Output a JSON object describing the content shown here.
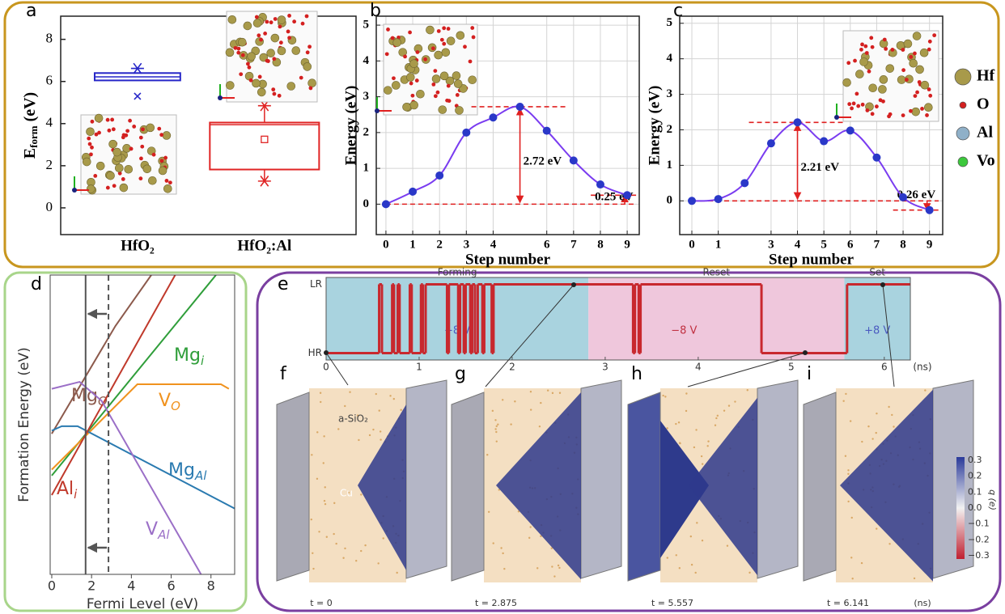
{
  "chart_data": [
    {
      "panel": "a",
      "type": "box",
      "ylabel": {
        "main": "E",
        "sub": "form",
        "unit": " (eV)"
      },
      "categories": [
        "HfO₂",
        "HfO₂:Al"
      ],
      "ylim": [
        -1.27,
        9.1
      ],
      "yticks": [
        0,
        2,
        4,
        6,
        8
      ],
      "boxes": [
        {
          "color": "#2626c8",
          "q1": 6.05,
          "q3": 6.4,
          "median": 6.22,
          "max": 6.62,
          "min": 5.3,
          "min_symbol": "x",
          "whiskers": false
        },
        {
          "color": "#e02424",
          "q1": 1.82,
          "q3": 4.05,
          "median": 3.95,
          "mean": 3.25,
          "max": 4.85,
          "min": 1.27,
          "min_symbol": "star",
          "whiskers": true
        }
      ]
    },
    {
      "panel": "b",
      "type": "line",
      "xlabel": "Step number",
      "ylabel": "Energy (eV)",
      "x": [
        0,
        1,
        2,
        3,
        4,
        5,
        6,
        7,
        8,
        9
      ],
      "values": [
        0,
        0.35,
        0.8,
        2.0,
        2.42,
        2.72,
        2.05,
        1.22,
        0.55,
        0.25
      ],
      "line_color": "#7a3cf0",
      "marker_color": "#2a38c8",
      "xlim": [
        -0.36,
        9.45
      ],
      "ylim": [
        -0.85,
        5.25
      ],
      "xticks": [
        0,
        1,
        2,
        3,
        4,
        6,
        7,
        8,
        9
      ],
      "yticks": [
        0,
        1,
        2,
        3,
        4,
        5
      ],
      "grid": true,
      "annotations": [
        "2.72 eV",
        "0.25 eV"
      ]
    },
    {
      "panel": "c",
      "type": "line",
      "xlabel": "Step number",
      "ylabel": "Energy (eV)",
      "x": [
        0,
        1,
        2,
        3,
        4,
        5,
        6,
        7,
        8,
        9
      ],
      "values": [
        0,
        0.05,
        0.5,
        1.62,
        2.21,
        1.68,
        1.98,
        1.22,
        0.1,
        -0.26
      ],
      "line_color": "#7a3cf0",
      "marker_color": "#2a38c8",
      "xlim": [
        -0.46,
        9.5
      ],
      "ylim": [
        -0.95,
        5.2
      ],
      "xticks": [
        0,
        1,
        3,
        4,
        5,
        6,
        7,
        8,
        9
      ],
      "yticks": [
        0,
        1,
        2,
        3,
        4,
        5
      ],
      "grid": true,
      "annotations": [
        "2.21 eV",
        "0.26 eV"
      ]
    },
    {
      "panel": "d",
      "type": "multiline",
      "xlabel": "Fermi Level (eV)",
      "ylabel": "Formation Energy (eV)",
      "xlim": [
        -0.08,
        9.19
      ],
      "ylim": [
        0,
        10
      ],
      "xticks": [
        0,
        2,
        4,
        6,
        8
      ],
      "vlines": [
        {
          "x": 1.7,
          "dashed": false
        },
        {
          "x": 2.85,
          "dashed": true
        }
      ],
      "series": [
        {
          "name": "Mg",
          "sub": "O",
          "color": "#8c5a4c",
          "x": [
            0,
            3.2,
            5.0
          ],
          "values": [
            4.7,
            8.3,
            10
          ]
        },
        {
          "name": "Mg",
          "sub": "i",
          "color": "#2f9e3a",
          "x": [
            0,
            8.25
          ],
          "values": [
            3.3,
            10
          ]
        },
        {
          "name": "V",
          "sub": "O",
          "color": "#f0921e",
          "x": [
            0,
            4.3,
            8.5,
            8.9
          ],
          "values": [
            3.5,
            6.35,
            6.35,
            6.2
          ]
        },
        {
          "name": "Mg",
          "sub": "Al",
          "color": "#2a7ab0",
          "x": [
            0,
            0.5,
            1.3,
            9.19
          ],
          "values": [
            4.8,
            4.95,
            4.95,
            2.2
          ]
        },
        {
          "name": "Al",
          "sub": "i",
          "color": "#c0392b",
          "x": [
            0,
            6.2
          ],
          "values": [
            2.65,
            10
          ]
        },
        {
          "name": "V",
          "sub": "Al",
          "color": "#9b6fc7",
          "x": [
            0,
            1.4,
            2.5,
            7.5
          ],
          "values": [
            6.2,
            6.43,
            5.8,
            0
          ]
        }
      ]
    },
    {
      "panel": "e",
      "type": "step",
      "color": "#c8282e",
      "xlim": [
        0,
        6.28
      ],
      "ylim": [
        -0.1,
        1.1
      ],
      "xticks": [
        0,
        1,
        2,
        3,
        4,
        5,
        6
      ],
      "xunit": "(ns)",
      "yticks": [
        {
          "value": 0,
          "label": "HR"
        },
        {
          "value": 1,
          "label": "LR"
        }
      ],
      "x": [
        0,
        0.57,
        0.6,
        0.71,
        0.73,
        0.77,
        0.79,
        0.9,
        0.92,
        1.02,
        1.04,
        1.07,
        1.3,
        1.32,
        1.42,
        1.44,
        1.48,
        1.5,
        1.55,
        1.57,
        1.6,
        1.63,
        1.68,
        1.7,
        1.78,
        1.8,
        3.3,
        3.32,
        3.36,
        3.38,
        4.68,
        5.6
      ],
      "values": [
        0,
        1,
        0,
        1,
        0,
        1,
        0,
        1,
        0,
        1,
        0,
        1,
        0,
        1,
        0,
        1,
        0,
        1,
        0,
        1,
        0,
        1,
        0,
        1,
        0,
        1,
        0,
        1,
        0,
        1,
        0,
        1
      ],
      "regions": [
        {
          "name": "Forming",
          "voltage": "+8 V",
          "start": 0,
          "end": 2.82,
          "color": "#a9d3df",
          "label_color": "#4a5ac0"
        },
        {
          "name": "Reset",
          "voltage": "−8 V",
          "start": 2.82,
          "end": 5.57,
          "color": "#efc7dc",
          "label_color": "#c03040"
        },
        {
          "name": "Set",
          "voltage": "+8 V",
          "start": 5.57,
          "end": 6.28,
          "color": "#a9d3df",
          "label_color": "#4a5ac0"
        }
      ]
    }
  ],
  "atom_legend": [
    {
      "name": "Hf",
      "color": "#a89a4a"
    },
    {
      "name": "O",
      "color": "#d42020"
    },
    {
      "name": "Al",
      "color": "#8fb0c8"
    },
    {
      "name": "Vo",
      "color": "#3cc83c"
    }
  ],
  "snapshots": [
    {
      "panel": "f",
      "time": "t = 0"
    },
    {
      "panel": "g",
      "time": "t = 2.875"
    },
    {
      "panel": "h",
      "time": "t = 5.557"
    },
    {
      "panel": "i",
      "time": "t = 6.141"
    }
  ],
  "snapshot_texts": [
    "a-SiO₂",
    "Cu"
  ],
  "time_unit": "(ns)",
  "colorbar": {
    "label": "q (e)",
    "lim": [
      -0.3,
      0.3
    ],
    "ticks": [
      0.3,
      0.2,
      0.1,
      {
        "value": 0,
        "label": "0.0"
      },
      {
        "value": -0.1,
        "label": "−0.1"
      },
      {
        "value": -0.2,
        "label": "−0.2"
      },
      {
        "value": -0.3,
        "label": "−0.3"
      }
    ]
  }
}
